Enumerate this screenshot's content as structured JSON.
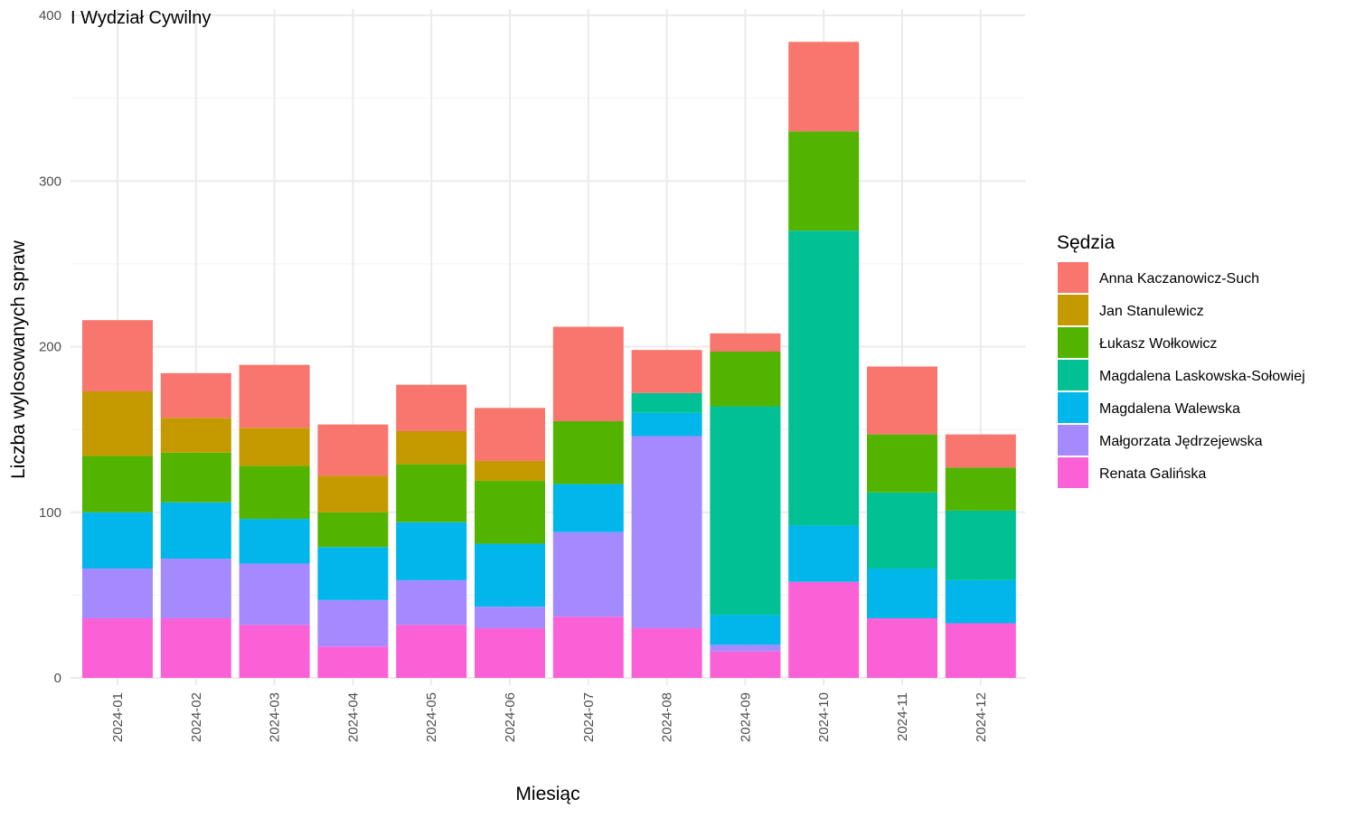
{
  "chart_data": {
    "type": "bar",
    "stacked": true,
    "title": "I Wydział Cywilny",
    "xlabel": "Miesiąc",
    "ylabel": "Liczba wylosowanych spraw",
    "ylim": [
      0,
      400
    ],
    "yticks": [
      0,
      100,
      200,
      300,
      400
    ],
    "grid": true,
    "legend": {
      "title": "Sędzia",
      "position": "right"
    },
    "categories": [
      "2024-01",
      "2024-02",
      "2024-03",
      "2024-04",
      "2024-05",
      "2024-06",
      "2024-07",
      "2024-08",
      "2024-09",
      "2024-10",
      "2024-11",
      "2024-12"
    ],
    "series": [
      {
        "name": "Renata Galińska",
        "color": "#FB61D7",
        "values": [
          36,
          36,
          32,
          19,
          32,
          30,
          37,
          30,
          16,
          58,
          36,
          33
        ]
      },
      {
        "name": "Małgorzata Jędrzejewska",
        "color": "#A58AFF",
        "values": [
          30,
          36,
          37,
          28,
          27,
          13,
          51,
          116,
          4,
          0,
          0,
          0
        ]
      },
      {
        "name": "Magdalena Walewska",
        "color": "#00B6EB",
        "values": [
          34,
          34,
          27,
          32,
          35,
          38,
          29,
          14,
          18,
          34,
          30,
          26
        ]
      },
      {
        "name": "Magdalena Laskowska-Sołowiej",
        "color": "#00C094",
        "values": [
          0,
          0,
          0,
          0,
          0,
          0,
          0,
          12,
          126,
          178,
          46,
          42
        ]
      },
      {
        "name": "Łukasz Wołkowicz",
        "color": "#53B400",
        "values": [
          34,
          30,
          32,
          21,
          35,
          38,
          38,
          0,
          33,
          60,
          35,
          26
        ]
      },
      {
        "name": "Jan Stanulewicz",
        "color": "#C49A00",
        "values": [
          39,
          21,
          23,
          22,
          20,
          12,
          0,
          0,
          0,
          0,
          0,
          0
        ]
      },
      {
        "name": "Anna Kaczanowicz-Such",
        "color": "#F8766D",
        "values": [
          43,
          27,
          38,
          31,
          28,
          32,
          57,
          26,
          11,
          54,
          41,
          20
        ]
      }
    ],
    "legend_order": [
      "Anna Kaczanowicz-Such",
      "Jan Stanulewicz",
      "Łukasz Wołkowicz",
      "Magdalena Laskowska-Sołowiej",
      "Magdalena Walewska",
      "Małgorzata Jędrzejewska",
      "Renata Galińska"
    ]
  }
}
